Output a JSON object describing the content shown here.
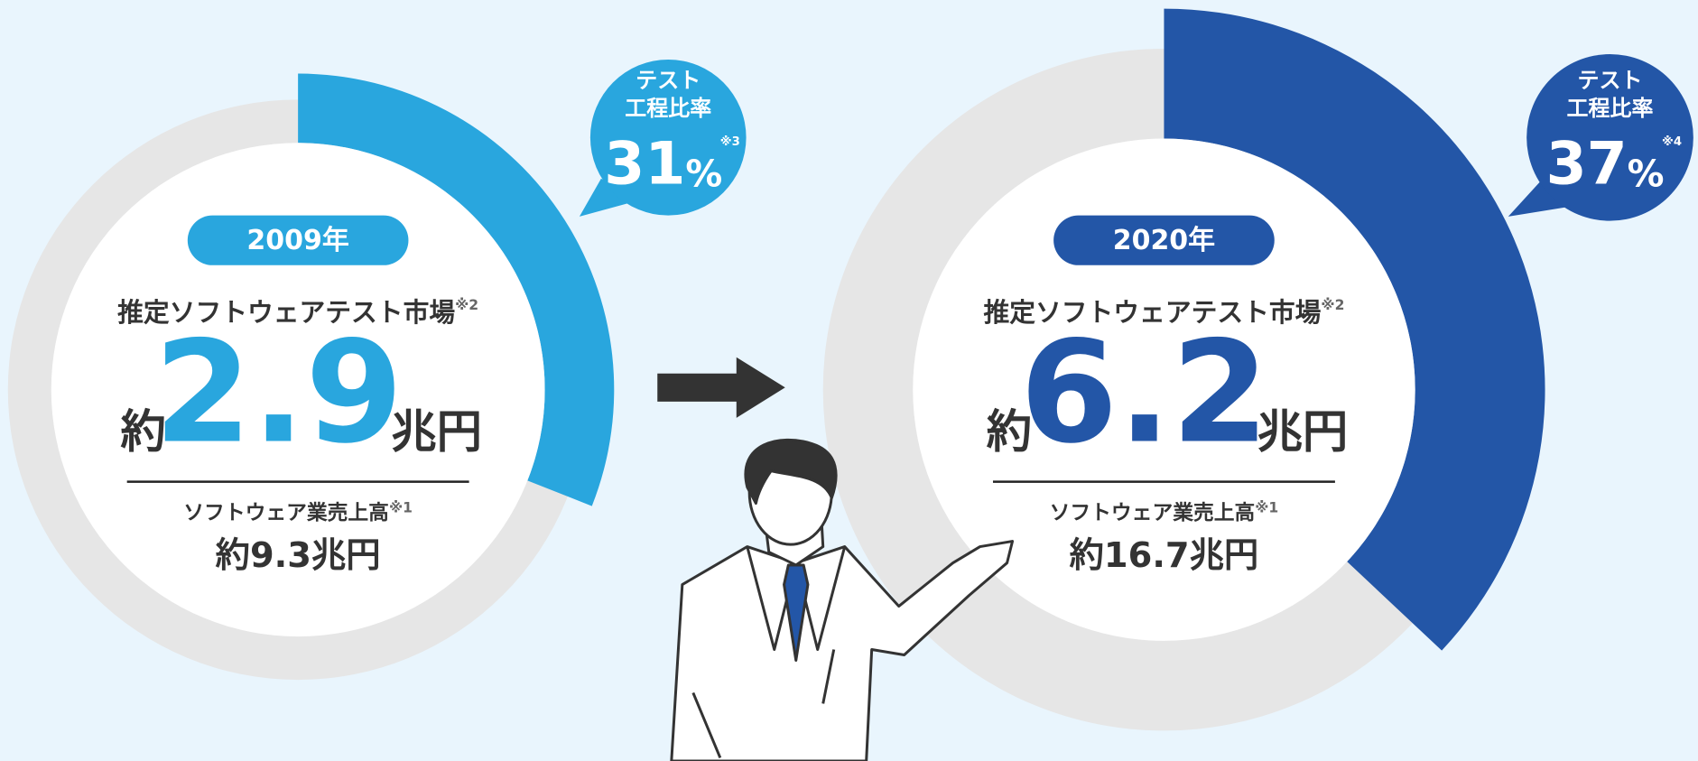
{
  "panels": [
    {
      "year": "2009年",
      "market_label": "推定ソフトウェアテスト市場",
      "market_note": "※2",
      "market_prefix": "約",
      "market_value": 2.9,
      "market_unit": "兆円",
      "sales_label": "ソフトウェア業売上高",
      "sales_note": "※1",
      "sales_value": "約9.3兆円",
      "bubble_line1": "テスト",
      "bubble_line2": "工程比率",
      "share": 31,
      "share_unit": "%",
      "share_note": "※3",
      "color": "#29a6de"
    },
    {
      "year": "2020年",
      "market_label": "推定ソフトウェアテスト市場",
      "market_note": "※2",
      "market_prefix": "約",
      "market_value": 6.2,
      "market_unit": "兆円",
      "sales_label": "ソフトウェア業売上高",
      "sales_note": "※1",
      "sales_value": "約16.7兆円",
      "bubble_line1": "テスト",
      "bubble_line2": "工程比率",
      "share": 37,
      "share_unit": "%",
      "share_note": "※4",
      "color": "#2356a7"
    }
  ]
}
